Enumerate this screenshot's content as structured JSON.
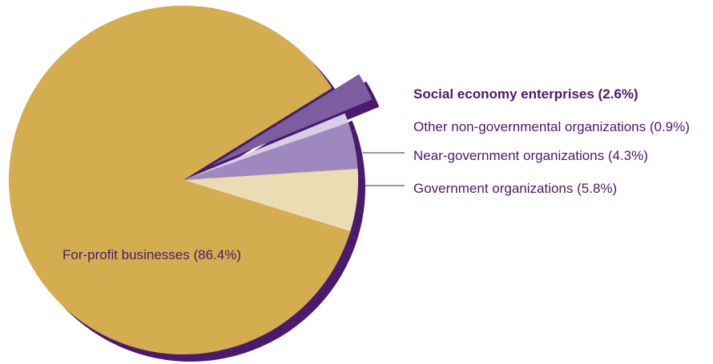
{
  "chart_data": {
    "type": "pie",
    "title": "",
    "series": [
      {
        "label": "For-profit businesses (86.4%)",
        "value": 86.4,
        "color": "#d4ad4f",
        "exploded": false,
        "bold": false
      },
      {
        "label": "Social economy enterprises (2.6%)",
        "value": 2.6,
        "color": "#7b5da0",
        "exploded": true,
        "bold": true
      },
      {
        "label": "Other non-governmental organizations (0.9%)",
        "value": 0.9,
        "color": "#d9cde6",
        "exploded": false,
        "bold": false
      },
      {
        "label": "Near-government organizations (4.3%)",
        "value": 4.3,
        "color": "#9e88bd",
        "exploded": false,
        "bold": false
      },
      {
        "label": "Government organizations (5.8%)",
        "value": 5.8,
        "color": "#ecdcb4",
        "exploded": false,
        "bold": false
      }
    ],
    "legend": "none",
    "grid": false,
    "shadow_color": "#4a1a6e",
    "label_color": "#4a1a6e"
  }
}
